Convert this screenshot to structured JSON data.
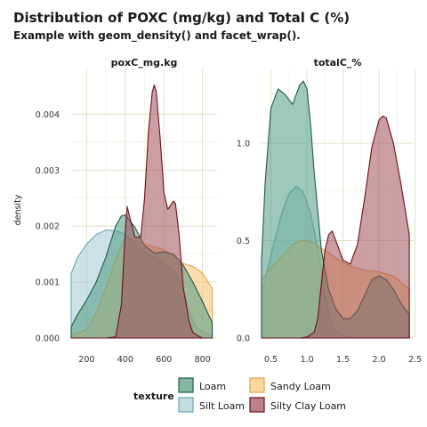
{
  "title": "Distribution of POXC (mg/kg) and Total C (%)",
  "subtitle": "Example with geom_density() and facet_wrap().",
  "chart_data": [
    {
      "type": "area",
      "facet": "poxC_mg.kg",
      "ylabel": "density",
      "xlim": [
        120,
        875
      ],
      "ylim": [
        0,
        0.0048
      ],
      "x_ticks": [
        200,
        400,
        600,
        800
      ],
      "y_ticks": [
        0.0,
        0.001,
        0.002,
        0.003,
        0.004
      ],
      "y_tick_labels": [
        "0.000",
        "0.001",
        "0.002",
        "0.003",
        "0.004"
      ],
      "grid": true,
      "series": [
        {
          "name": "Silt Loam",
          "x": [
            120,
            150,
            200,
            250,
            300,
            350,
            400,
            450,
            500,
            550,
            600,
            650,
            700,
            730,
            760,
            800,
            850
          ],
          "y": [
            0.00115,
            0.00142,
            0.00168,
            0.00185,
            0.00193,
            0.00192,
            0.00185,
            0.00168,
            0.00154,
            0.00143,
            0.00134,
            0.0012,
            0.00088,
            0.0005,
            0.00022,
            0.0001,
            5e-05
          ]
        },
        {
          "name": "Sandy Loam",
          "x": [
            120,
            200,
            250,
            300,
            350,
            380,
            400,
            450,
            500,
            550,
            600,
            650,
            700,
            750,
            800,
            850
          ],
          "y": [
            5e-05,
            0.00015,
            0.00045,
            0.0009,
            0.0014,
            0.00165,
            0.00178,
            0.00175,
            0.00168,
            0.00163,
            0.00157,
            0.00147,
            0.00133,
            0.00128,
            0.00116,
            0.00088
          ]
        },
        {
          "name": "Loam",
          "x": [
            120,
            150,
            200,
            250,
            300,
            350,
            380,
            400,
            450,
            500,
            550,
            600,
            650,
            700,
            750,
            800,
            850
          ],
          "y": [
            0.0002,
            0.0004,
            0.00068,
            0.001,
            0.00145,
            0.002,
            0.00218,
            0.0022,
            0.00198,
            0.00165,
            0.00152,
            0.00154,
            0.0015,
            0.0013,
            0.001,
            0.00065,
            0.00027
          ]
        },
        {
          "name": "Silty Clay Loam",
          "x": [
            120,
            300,
            350,
            380,
            400,
            410,
            420,
            450,
            480,
            500,
            520,
            540,
            550,
            560,
            580,
            600,
            620,
            650,
            660,
            680,
            700,
            730,
            750,
            780,
            800,
            850
          ],
          "y": [
            0,
            0,
            2e-05,
            0.0006,
            0.0019,
            0.00235,
            0.0022,
            0.0018,
            0.0018,
            0.0025,
            0.0037,
            0.0044,
            0.00452,
            0.0044,
            0.0036,
            0.0026,
            0.0023,
            0.00245,
            0.0024,
            0.0018,
            0.0009,
            0.0003,
            0.0001,
            3e-05,
            0,
            0
          ]
        }
      ]
    },
    {
      "type": "area",
      "facet": "totalC_%",
      "xlim": [
        0.37,
        2.48
      ],
      "ylim": [
        0,
        1.38
      ],
      "x_ticks": [
        0.5,
        1.0,
        1.5,
        2.0,
        2.5
      ],
      "x_tick_labels": [
        "0.5",
        "1.0",
        "1.5",
        "2.0",
        "2.5"
      ],
      "y_ticks": [
        0.0,
        0.5,
        1.0
      ],
      "y_tick_labels": [
        "0.0",
        "0.5",
        "1.0"
      ],
      "grid": true,
      "series": [
        {
          "name": "Silt Loam",
          "x": [
            0.37,
            0.45,
            0.55,
            0.65,
            0.75,
            0.85,
            0.95,
            1.05,
            1.15,
            1.25,
            1.35,
            1.5,
            1.7,
            2.0,
            2.2,
            2.42
          ],
          "y": [
            0.22,
            0.35,
            0.5,
            0.64,
            0.74,
            0.78,
            0.75,
            0.64,
            0.46,
            0.22,
            0.06,
            0.01,
            0.003,
            0.001,
            0.0005,
            0.0002
          ]
        },
        {
          "name": "Sandy Loam",
          "x": [
            0.37,
            0.5,
            0.6,
            0.7,
            0.8,
            0.9,
            1.0,
            1.1,
            1.2,
            1.3,
            1.4,
            1.5,
            1.6,
            1.8,
            2.0,
            2.2,
            2.42
          ],
          "y": [
            0.3,
            0.36,
            0.4,
            0.44,
            0.48,
            0.5,
            0.5,
            0.49,
            0.46,
            0.44,
            0.41,
            0.39,
            0.37,
            0.35,
            0.34,
            0.32,
            0.25
          ]
        },
        {
          "name": "Loam",
          "x": [
            0.37,
            0.42,
            0.5,
            0.6,
            0.7,
            0.8,
            0.85,
            0.9,
            0.95,
            1.0,
            1.05,
            1.1,
            1.2,
            1.3,
            1.4,
            1.5,
            1.6,
            1.7,
            1.8,
            1.9,
            2.0,
            2.1,
            2.2,
            2.3,
            2.42
          ],
          "y": [
            0.4,
            0.8,
            1.18,
            1.28,
            1.25,
            1.2,
            1.25,
            1.3,
            1.32,
            1.28,
            1.1,
            0.85,
            0.45,
            0.25,
            0.15,
            0.1,
            0.1,
            0.14,
            0.22,
            0.3,
            0.32,
            0.3,
            0.25,
            0.18,
            0.12
          ]
        },
        {
          "name": "Silty Clay Loam",
          "x": [
            0.37,
            0.9,
            1.0,
            1.1,
            1.15,
            1.2,
            1.25,
            1.3,
            1.35,
            1.4,
            1.5,
            1.6,
            1.7,
            1.8,
            1.9,
            2.0,
            2.05,
            2.1,
            2.2,
            2.3,
            2.42
          ],
          "y": [
            0,
            0,
            0.005,
            0.03,
            0.1,
            0.28,
            0.45,
            0.53,
            0.55,
            0.5,
            0.4,
            0.38,
            0.48,
            0.72,
            0.98,
            1.12,
            1.14,
            1.13,
            1.0,
            0.8,
            0.53
          ]
        }
      ]
    }
  ],
  "legend": {
    "title": "texture",
    "placement": "bottom",
    "items": [
      {
        "label": "Loam",
        "fill": "#84b8a0",
        "stroke": "#1d5a4c"
      },
      {
        "label": "Sandy Loam",
        "fill": "#fdd9a0",
        "stroke": "#e6a24a"
      },
      {
        "label": "Silt Loam",
        "fill": "#c4dde2",
        "stroke": "#6aa3b5"
      },
      {
        "label": "Silty Clay Loam",
        "fill": "#bb8088",
        "stroke": "#6e0e1c"
      }
    ]
  },
  "colors": {
    "Loam": {
      "fill": "#4e9a83",
      "stroke": "#1d5a4c"
    },
    "Sandy Loam": {
      "fill": "#fbbf6b",
      "stroke": "#e6a24a"
    },
    "Silt Loam": {
      "fill": "#a4cbd4",
      "stroke": "#6aa3b5"
    },
    "Silty Clay Loam": {
      "fill": "#a04e5a",
      "stroke": "#6e0e1c"
    }
  }
}
